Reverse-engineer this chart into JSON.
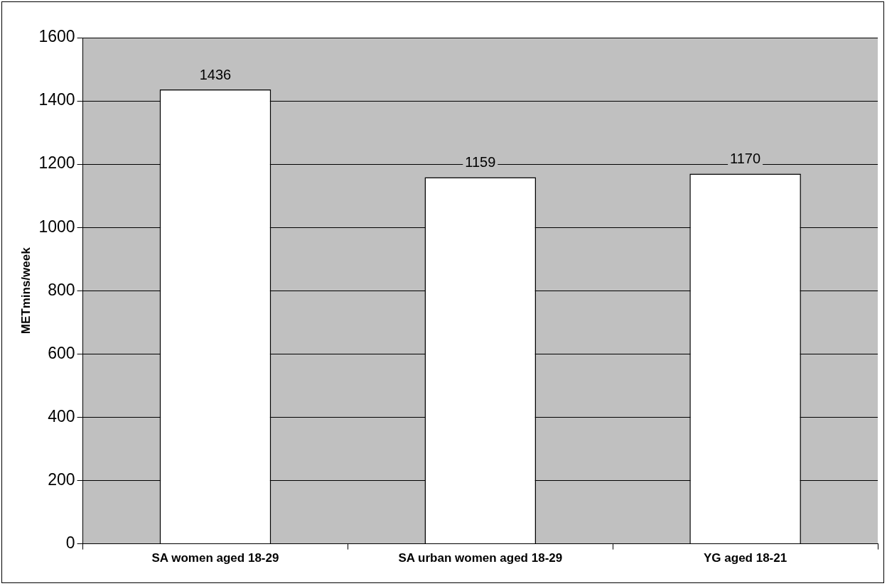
{
  "chart_data": {
    "type": "bar",
    "ylabel": "METmins/week",
    "categories": [
      "SA women aged 18-29",
      "SA urban women aged 18-29",
      "YG aged 18-21"
    ],
    "values": [
      1436,
      1159,
      1170
    ],
    "color": "#ffffff",
    "ylim": [
      0,
      1600
    ],
    "yticks": [
      0,
      200,
      400,
      600,
      800,
      1000,
      1200,
      1400,
      1600
    ],
    "grid": "y",
    "data_labels": true
  }
}
